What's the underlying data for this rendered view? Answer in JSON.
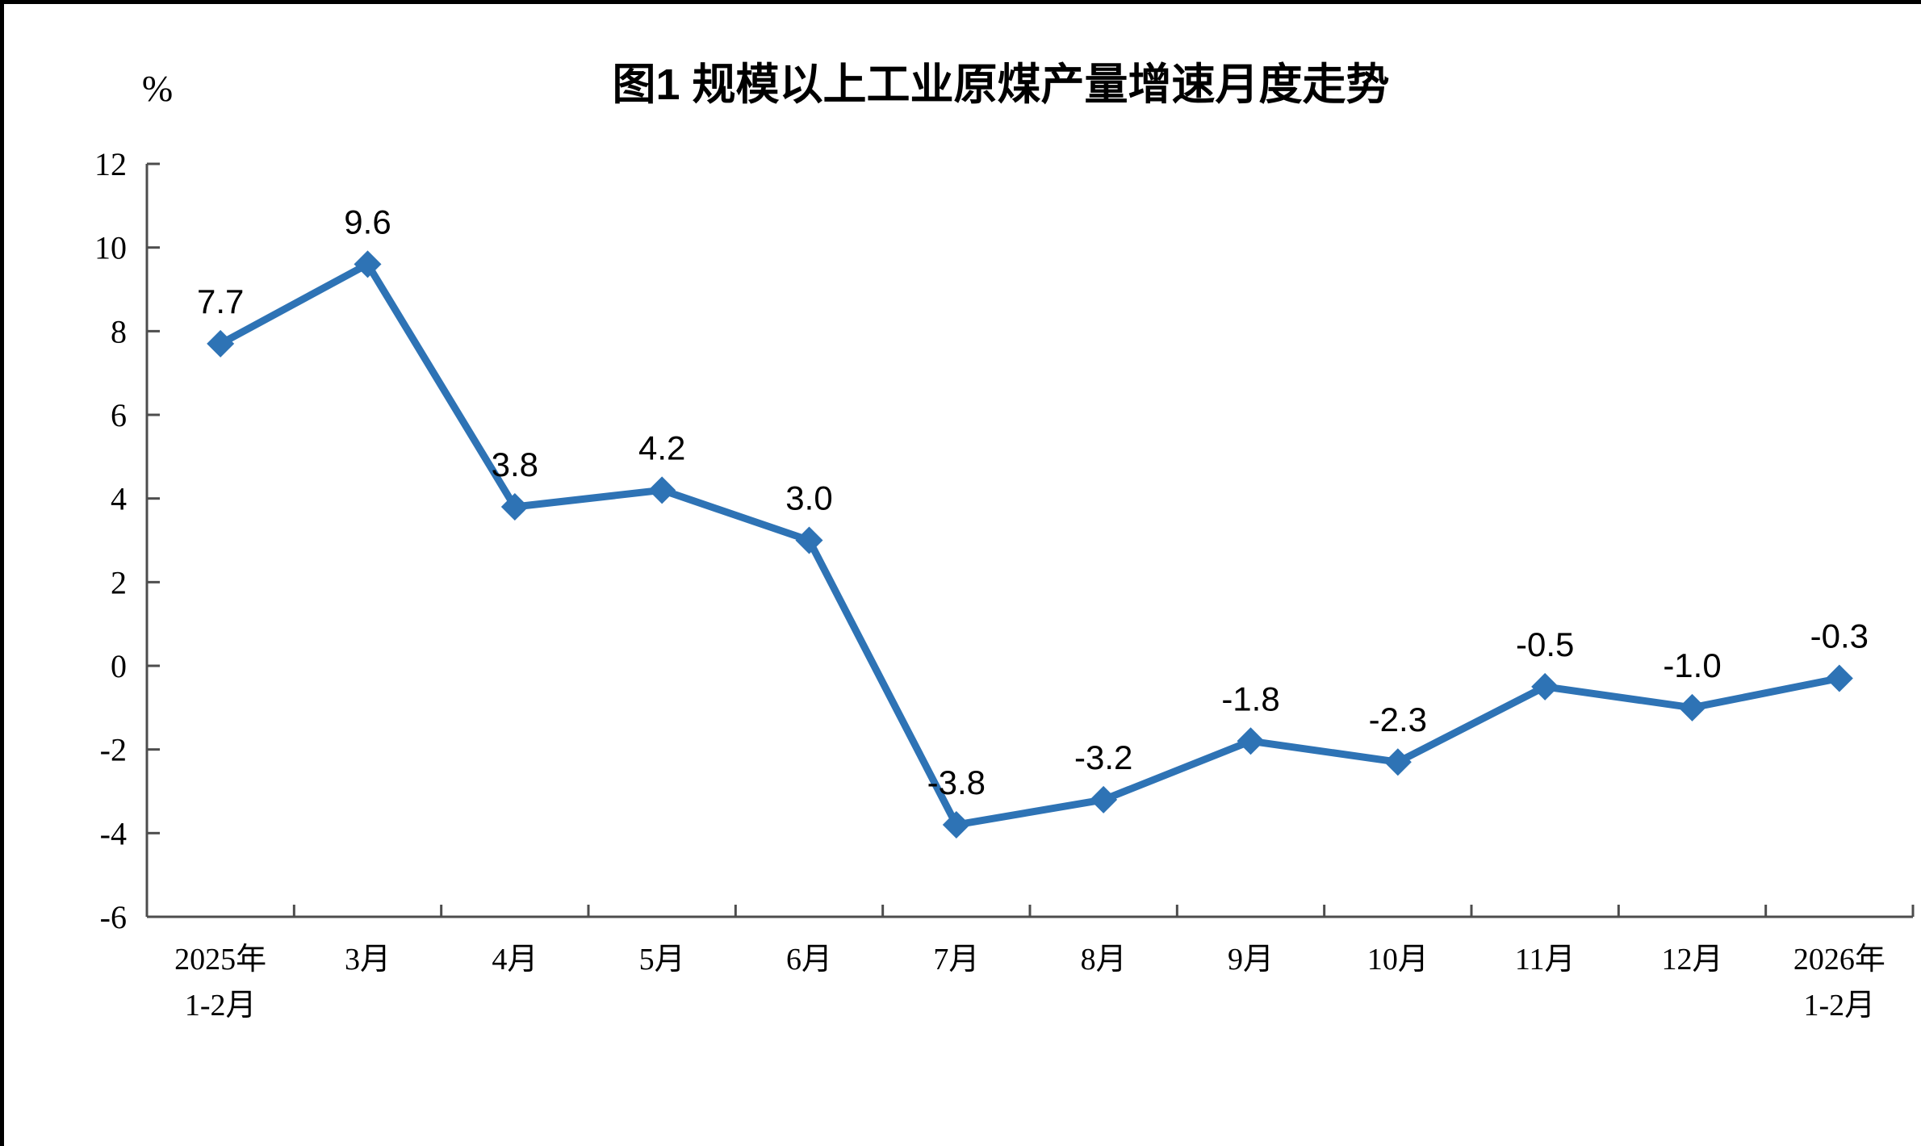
{
  "page": {
    "title": "图1  规模以上工业原煤产量增速月度走势",
    "unit_label": "%"
  },
  "chart_data": {
    "type": "line",
    "title": "图1  规模以上工业原煤产量增速月度走势",
    "ylabel": "%",
    "xlabel": "",
    "categories": [
      "2025年\n1-2月",
      "3月",
      "4月",
      "5月",
      "6月",
      "7月",
      "8月",
      "9月",
      "10月",
      "11月",
      "12月",
      "2026年\n1-2月"
    ],
    "values": [
      7.7,
      9.6,
      3.8,
      4.2,
      3.0,
      -3.8,
      -3.2,
      -1.8,
      -2.3,
      -0.5,
      -1.0,
      -0.3
    ],
    "point_labels": [
      "7.7",
      "9.6",
      "3.8",
      "4.2",
      "3.0",
      "-3.8",
      "-3.2",
      "-1.8",
      "-2.3",
      "-0.5",
      "-1.0",
      "-0.3"
    ],
    "ylim": [
      -6,
      12
    ],
    "y_ticks": [
      12,
      10,
      8,
      6,
      4,
      2,
      0,
      -2,
      -4,
      -6
    ],
    "grid": false,
    "legend_position": "none",
    "line_color": "#2E73B5",
    "marker": "diamond",
    "axis_color": "#4D4D4D",
    "label_color": "#000000"
  }
}
